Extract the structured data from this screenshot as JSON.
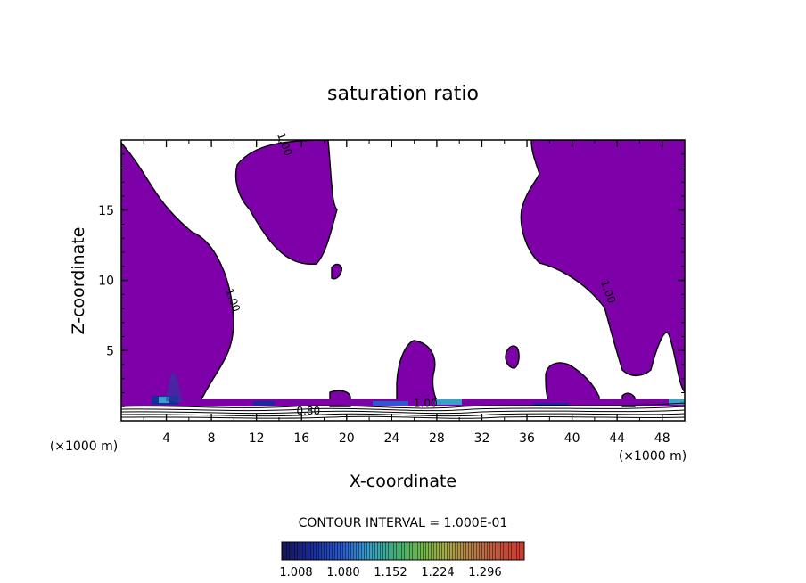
{
  "chart_data": {
    "type": "heatmap",
    "title": "saturation ratio",
    "xlabel": "X-coordinate",
    "ylabel": "Z-coordinate",
    "x_unit": "(×1000 m)",
    "y_unit": "(×1000 m)",
    "xlim": [
      0,
      50
    ],
    "ylim": [
      0,
      20
    ],
    "x_ticks": [
      "4",
      "8",
      "12",
      "16",
      "20",
      "24",
      "28",
      "32",
      "36",
      "40",
      "44",
      "48"
    ],
    "y_ticks": [
      "5",
      "10",
      "15"
    ],
    "contour_interval_text": "CONTOUR INTERVAL = 1.000E-01",
    "colorbar_ticks": [
      "1.008",
      "1.080",
      "1.152",
      "1.224",
      "1.296"
    ],
    "contour_labels": [
      {
        "text": "1.00",
        "x": 14.2,
        "z": 19.6
      },
      {
        "text": "1.00",
        "x": 9.6,
        "z": 8.5
      },
      {
        "text": "1.00",
        "x": 42.9,
        "z": 9.1
      },
      {
        "text": "1.00",
        "x": 27.0,
        "z": 1.0
      },
      {
        "text": "0.80",
        "x": 16.6,
        "z": 0.45
      }
    ],
    "colors": {
      "fill_at_1_00": "#7d00a8",
      "colorbar_low": "#0a0a5a",
      "colorbar_high": "#d03020"
    }
  }
}
